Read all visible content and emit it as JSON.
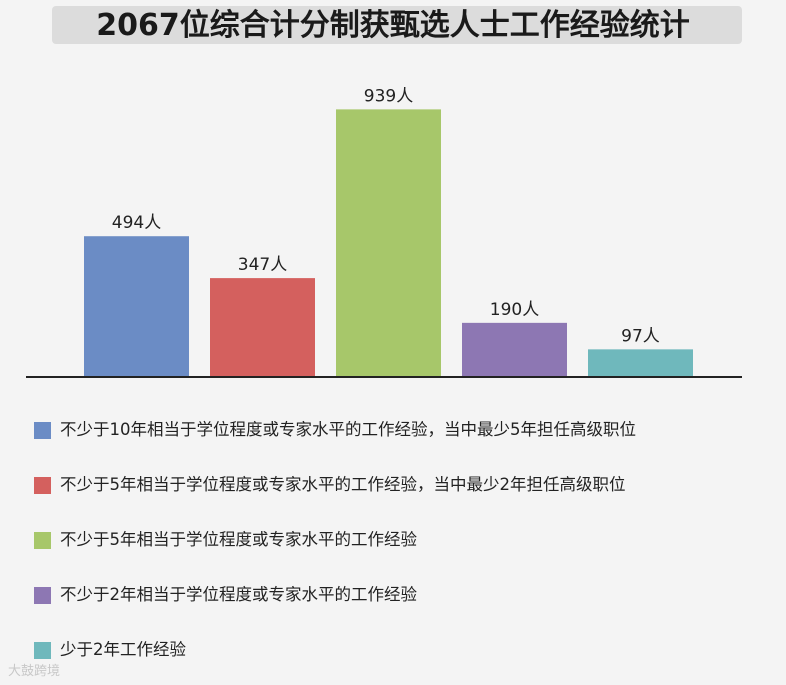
{
  "title": "2067位综合计分制获甄选人士工作经验统计",
  "chart_data": {
    "type": "bar",
    "title": "2067位综合计分制获甄选人士工作经验统计",
    "categories": [
      "不少于10年相当于学位程度或专家水平的工作经验，当中最少5年担任高级职位",
      "不少于5年相当于学位程度或专家水平的工作经验，当中最少2年担任高级职位",
      "不少于5年相当于学位程度或专家水平的工作经验",
      "不少于2年相当于学位程度或专家水平的工作经验",
      "少于2年工作经验"
    ],
    "values": [
      494,
      347,
      939,
      190,
      97
    ],
    "data_labels": [
      "494人",
      "347人",
      "939人",
      "190人",
      "97人"
    ],
    "colors": [
      "#6b8cc5",
      "#d4605e",
      "#a7c76a",
      "#8d77b3",
      "#6fb8bc"
    ],
    "ylim": [
      0,
      1000
    ],
    "grid": false,
    "legend_position": "bottom"
  },
  "watermark": "大鼓跨境"
}
